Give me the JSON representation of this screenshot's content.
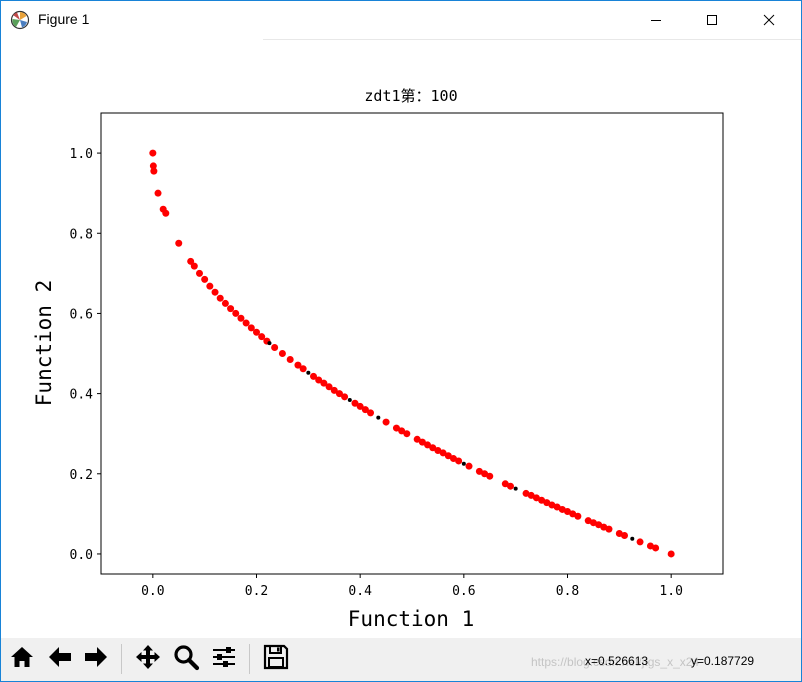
{
  "window": {
    "title": "Figure 1",
    "icons": {
      "app": "matplotlib-icon",
      "minimize": "minimize-icon",
      "maximize": "maximize-icon",
      "close": "close-icon"
    }
  },
  "chart_data": {
    "type": "scatter",
    "title": "zdt1第：100",
    "xlabel": "Function 1",
    "ylabel": "Function 2",
    "xlim": [
      -0.1,
      1.1
    ],
    "ylim": [
      -0.05,
      1.1
    ],
    "xticks": [
      "0.0",
      "0.2",
      "0.4",
      "0.6",
      "0.8",
      "1.0"
    ],
    "yticks": [
      "0.0",
      "0.2",
      "0.4",
      "0.6",
      "0.8",
      "1.0"
    ],
    "grid": false,
    "series": [
      {
        "color": "#ff0000",
        "marker": "circle",
        "x": [
          0.0,
          0.001,
          0.002,
          0.01,
          0.02,
          0.025,
          0.05,
          0.073,
          0.08,
          0.09,
          0.1,
          0.11,
          0.12,
          0.13,
          0.14,
          0.15,
          0.16,
          0.17,
          0.18,
          0.19,
          0.2,
          0.21,
          0.22,
          0.235,
          0.25,
          0.265,
          0.28,
          0.29,
          0.31,
          0.32,
          0.33,
          0.34,
          0.35,
          0.36,
          0.37,
          0.39,
          0.4,
          0.41,
          0.42,
          0.45,
          0.47,
          0.48,
          0.49,
          0.51,
          0.52,
          0.53,
          0.54,
          0.55,
          0.56,
          0.57,
          0.58,
          0.59,
          0.61,
          0.63,
          0.64,
          0.65,
          0.68,
          0.69,
          0.72,
          0.73,
          0.74,
          0.75,
          0.76,
          0.77,
          0.78,
          0.79,
          0.8,
          0.81,
          0.82,
          0.84,
          0.85,
          0.86,
          0.87,
          0.88,
          0.9,
          0.91,
          0.94,
          0.96,
          0.97,
          1.0
        ],
        "y": [
          1.0,
          0.968,
          0.955,
          0.9,
          0.86,
          0.85,
          0.775,
          0.73,
          0.718,
          0.7,
          0.685,
          0.668,
          0.653,
          0.638,
          0.625,
          0.612,
          0.6,
          0.588,
          0.576,
          0.564,
          0.553,
          0.542,
          0.531,
          0.515,
          0.5,
          0.485,
          0.471,
          0.462,
          0.443,
          0.434,
          0.426,
          0.417,
          0.408,
          0.4,
          0.392,
          0.376,
          0.368,
          0.36,
          0.352,
          0.329,
          0.314,
          0.307,
          0.3,
          0.286,
          0.279,
          0.272,
          0.265,
          0.258,
          0.252,
          0.245,
          0.238,
          0.232,
          0.219,
          0.206,
          0.2,
          0.194,
          0.175,
          0.169,
          0.151,
          0.146,
          0.14,
          0.134,
          0.128,
          0.122,
          0.117,
          0.111,
          0.106,
          0.1,
          0.094,
          0.083,
          0.078,
          0.073,
          0.067,
          0.062,
          0.051,
          0.046,
          0.03,
          0.02,
          0.015,
          0.0
        ]
      },
      {
        "color": "#000000",
        "marker": "dot",
        "x": [
          0.225,
          0.3,
          0.38,
          0.435,
          0.6,
          0.7,
          0.925
        ],
        "y": [
          0.526,
          0.452,
          0.384,
          0.34,
          0.225,
          0.163,
          0.038
        ]
      }
    ]
  },
  "toolbar": {
    "buttons": [
      {
        "name": "home-button",
        "icon": "home-icon"
      },
      {
        "name": "back-button",
        "icon": "arrow-left-icon"
      },
      {
        "name": "forward-button",
        "icon": "arrow-right-icon"
      },
      {
        "name": "pan-button",
        "icon": "move-icon"
      },
      {
        "name": "zoom-button",
        "icon": "magnifier-icon"
      },
      {
        "name": "configure-subplots-button",
        "icon": "sliders-icon"
      },
      {
        "name": "save-button",
        "icon": "floppy-disk-icon"
      }
    ],
    "status_x": "x=0.526613",
    "status_y": "y=0.187729",
    "watermark": "https://blog.csdn.net/jtgs_x_x24"
  }
}
